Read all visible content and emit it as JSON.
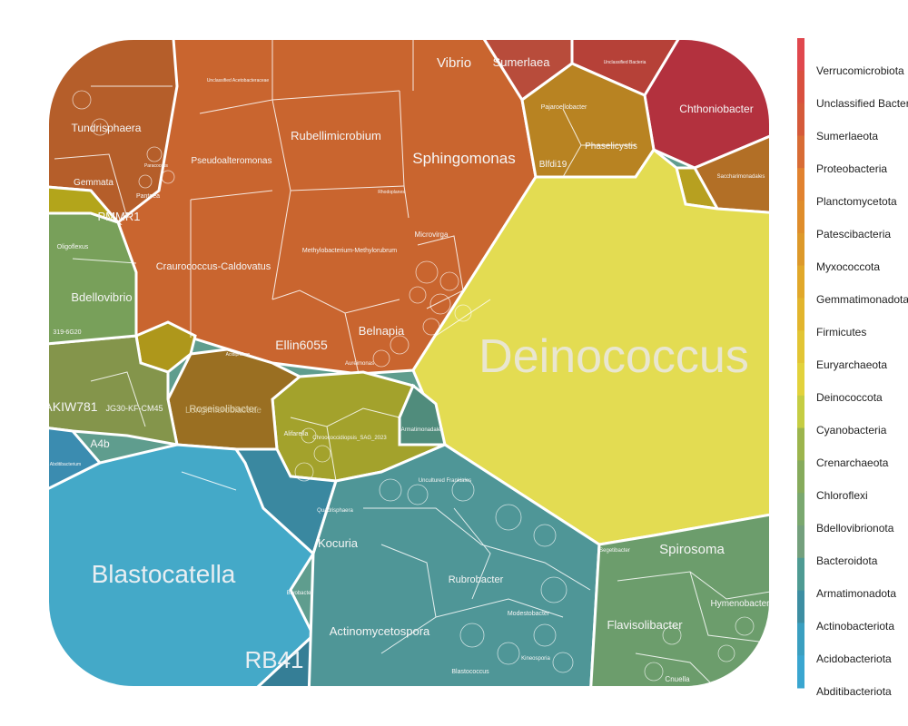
{
  "chart_data": {
    "type": "voronoi-treemap",
    "legend": {
      "placement": "right",
      "entries": [
        {
          "name": "Verrucomicrobiota",
          "color": "#e0484e"
        },
        {
          "name": "Unclassified Bacteria",
          "color": "#d9503f"
        },
        {
          "name": "Sumerlaeota",
          "color": "#d55a3a"
        },
        {
          "name": "Proteobacteria",
          "color": "#d86c35"
        },
        {
          "name": "Planctomycetota",
          "color": "#e1822f"
        },
        {
          "name": "Patescibacteria",
          "color": "#df8d2b"
        },
        {
          "name": "Myxococcota",
          "color": "#dd992a"
        },
        {
          "name": "Gemmatimonadota",
          "color": "#e1a82a"
        },
        {
          "name": "Firmicutes",
          "color": "#e2b52d"
        },
        {
          "name": "Euryarchaeota",
          "color": "#e2c534"
        },
        {
          "name": "Deinococcota",
          "color": "#e2d23c"
        },
        {
          "name": "Cyanobacteria",
          "color": "#c5cd43"
        },
        {
          "name": "Crenarchaeota",
          "color": "#9cb54d"
        },
        {
          "name": "Chloroflexi",
          "color": "#86ab5c"
        },
        {
          "name": "Bdellovibrionota",
          "color": "#7aa86f"
        },
        {
          "name": "Bacteroidota",
          "color": "#74a07d"
        },
        {
          "name": "Armatimonadota",
          "color": "#4f9b93"
        },
        {
          "name": "Actinobacteriota",
          "color": "#3d8ea2"
        },
        {
          "name": "Acidobacteriota",
          "color": "#3a9fc0"
        },
        {
          "name": "Abditibacteriota",
          "color": "#3aa6d0"
        }
      ]
    },
    "cell_labels": [
      {
        "text": "Deinococcus",
        "size": "xlarge"
      },
      {
        "text": "Blastocatella",
        "size": "large"
      },
      {
        "text": "RB41",
        "size": "large"
      },
      {
        "text": "Sphingomonas",
        "size": "medium"
      },
      {
        "text": "Rubellimicrobium",
        "size": "medium"
      },
      {
        "text": "Craurococcus-Caldovatus",
        "size": "small"
      },
      {
        "text": "Ellin6055",
        "size": "medium"
      },
      {
        "text": "Belnapia",
        "size": "medium"
      },
      {
        "text": "Tundrisphaera",
        "size": "medium"
      },
      {
        "text": "Bdellovibrio",
        "size": "medium"
      },
      {
        "text": "Vibrio",
        "size": "medium"
      },
      {
        "text": "Sumerlaea",
        "size": "medium"
      },
      {
        "text": "Chthoniobacter",
        "size": "medium"
      },
      {
        "text": "Spirosoma",
        "size": "medium"
      },
      {
        "text": "Flavisolibacter",
        "size": "medium"
      },
      {
        "text": "Actinomycetospora",
        "size": "medium"
      },
      {
        "text": "Kocuria",
        "size": "medium"
      },
      {
        "text": "Rubrobacter",
        "size": "small"
      },
      {
        "text": "Pseudoalteromonas",
        "size": "small"
      },
      {
        "text": "Gemmata",
        "size": "small"
      },
      {
        "text": "PMMR1",
        "size": "medium"
      },
      {
        "text": "Phaselicystis",
        "size": "small"
      },
      {
        "text": "Pajaroellobacter",
        "size": "tiny"
      },
      {
        "text": "Blfdi19",
        "size": "small"
      },
      {
        "text": "Microvirga",
        "size": "tiny"
      },
      {
        "text": "Methylobacterium-Methylorubrum",
        "size": "tiny"
      },
      {
        "text": "Roseisolibacter",
        "size": "small"
      },
      {
        "text": "Longimicrobiaceae",
        "size": "small"
      },
      {
        "text": "AKIW781",
        "size": "medium"
      },
      {
        "text": "JG30-KF-CM45",
        "size": "small"
      },
      {
        "text": "A4b",
        "size": "small"
      },
      {
        "text": "Oligoflexus",
        "size": "tiny"
      },
      {
        "text": "319-6G20",
        "size": "tiny"
      },
      {
        "text": "Armatimonadales",
        "size": "tiny"
      },
      {
        "text": "Chroococcidiopsis_SAG_2023",
        "size": "tiny"
      },
      {
        "text": "Alifarella",
        "size": "tiny"
      },
      {
        "text": "Hymenobacter",
        "size": "small"
      },
      {
        "text": "Modestobacter",
        "size": "tiny"
      },
      {
        "text": "Blastococcus",
        "size": "tiny"
      },
      {
        "text": "Uncultured Frankiales",
        "size": "tiny"
      },
      {
        "text": "Saccharimonadales",
        "size": "tiny"
      },
      {
        "text": "Unclassified Bacteria",
        "size": "tiny"
      },
      {
        "text": "Unclassified Acetobacteraceae",
        "size": "tiny"
      },
      {
        "text": "Abditibacterium",
        "size": "tiny"
      },
      {
        "text": "Segetibacter",
        "size": "tiny"
      },
      {
        "text": "Cnuella",
        "size": "tiny"
      },
      {
        "text": "Bryobacter",
        "size": "tiny"
      },
      {
        "text": "Quadrisphaera",
        "size": "tiny"
      },
      {
        "text": "Kineosporia",
        "size": "tiny"
      },
      {
        "text": "Acidiphilium",
        "size": "tiny"
      },
      {
        "text": "Aureimonas",
        "size": "tiny"
      },
      {
        "text": "Pantoea",
        "size": "tiny"
      },
      {
        "text": "Paracoccus",
        "size": "tiny"
      },
      {
        "text": "Rhodoplanes",
        "size": "tiny"
      }
    ]
  }
}
